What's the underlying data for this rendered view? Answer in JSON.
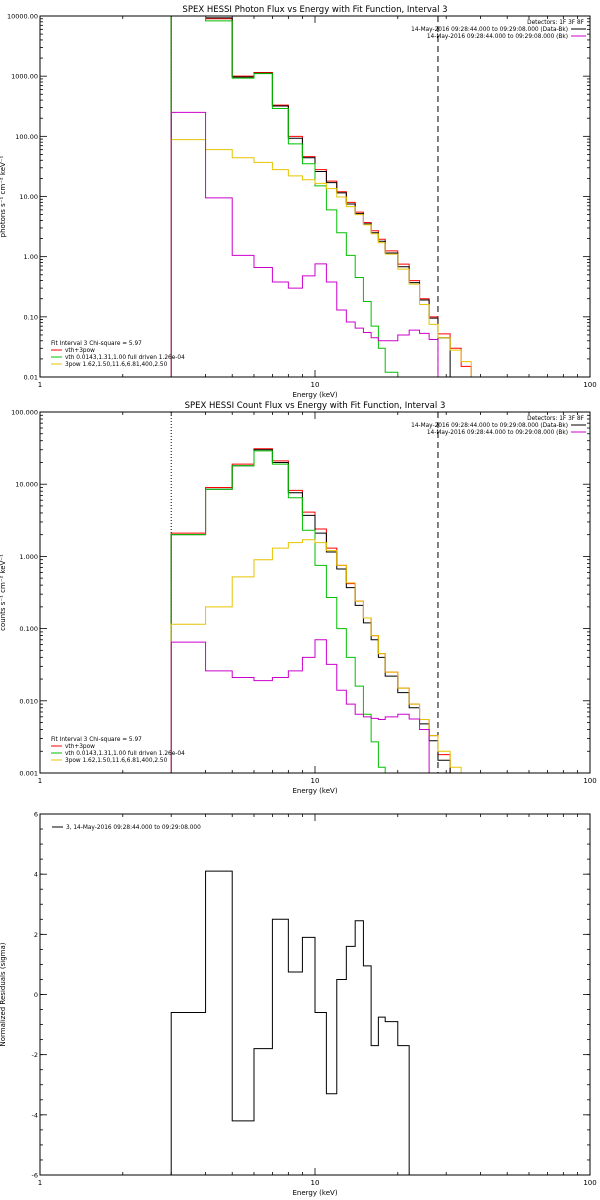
{
  "figure": {
    "background": "#ffffff",
    "axis_color": "#000000"
  },
  "chart_data": [
    {
      "type": "line",
      "step": true,
      "log_x": true,
      "log_y": true,
      "title": "SPEX HESSI Photon Flux vs Energy with Fit Function, Interval 3",
      "xlabel": "Energy (keV)",
      "ylabel": "photons s⁻¹ cm⁻² keV⁻¹",
      "xlim": [
        1,
        100
      ],
      "ylim": [
        0.01,
        10000
      ],
      "x_ticks": [
        1,
        10,
        100
      ],
      "x_tick_labels": [
        "1",
        "10",
        "100"
      ],
      "y_ticks": [
        0.01,
        0.1,
        1,
        10,
        100,
        1000,
        10000
      ],
      "y_tick_labels": [
        "0.01",
        "0.10",
        "1.00",
        "10.00",
        "100.00",
        "1000.00",
        "10000.00"
      ],
      "vlines": [
        {
          "x": 3,
          "style": "dotted"
        },
        {
          "x": 28,
          "style": "dashed"
        }
      ],
      "legend_tr": {
        "header": "Detectors: 1F 3F 8F",
        "lines": [
          {
            "text": "14-May-2016 09:28:44.000 to 09:29:08.000 (Data-Bk)",
            "color": "#000000"
          },
          {
            "text": "14-May-2016 09:28:44.000 to 09:29:08.000 (Bk)",
            "color": "#cc00cc"
          }
        ]
      },
      "legend_bl": {
        "header": "Fit Interval 3   Chi-square = 5.97",
        "lines": [
          {
            "text": "vth+3pow",
            "color": "#ff0000"
          },
          {
            "text": "vth 0.0143,1.31,1.00  full driven 1.26e-04",
            "color": "#00c000"
          },
          {
            "text": "3pow 1.62,1.50,11.6,6.81,400,2.50",
            "color": "#e6c400"
          }
        ]
      },
      "edges": [
        3,
        4,
        5,
        6,
        7,
        8,
        9,
        10,
        11,
        12,
        13,
        14,
        15,
        16,
        17,
        18,
        20,
        22,
        24,
        26,
        28,
        31,
        34,
        37
      ],
      "series": [
        {
          "color": "#ff0000",
          "values": [
            10000,
            9000,
            1000,
            1150,
            330,
            100,
            46,
            28,
            18,
            12,
            8,
            5.5,
            3.7,
            2.7,
            1.95,
            1.25,
            0.75,
            0.4,
            0.2,
            0.1,
            0.052,
            0.03,
            0.015
          ]
        },
        {
          "color": "#000000",
          "values": [
            10000,
            9300,
            970,
            1120,
            320,
            93,
            44,
            26,
            17,
            11.5,
            7.5,
            5.2,
            3.5,
            2.5,
            1.8,
            1.15,
            0.68,
            0.37,
            0.19,
            0.095,
            0.045
          ]
        },
        {
          "color": "#00c000",
          "values": [
            10000,
            8300,
            930,
            1100,
            290,
            75,
            35,
            15,
            6,
            2.5,
            1.05,
            0.45,
            0.18,
            0.07,
            0.03,
            0.012
          ]
        },
        {
          "color": "#e6c400",
          "values": [
            88,
            60,
            44,
            37,
            28,
            22,
            19,
            16.5,
            13.5,
            9.8,
            6.8,
            5.0,
            3.4,
            2.4,
            1.7,
            1.1,
            0.62,
            0.35,
            0.16,
            0.075,
            0.045,
            0.028,
            0.018
          ]
        },
        {
          "color": "#cc00cc",
          "values": [
            250,
            9.5,
            1.05,
            0.66,
            0.38,
            0.3,
            0.48,
            0.76,
            0.38,
            0.13,
            0.082,
            0.065,
            0.055,
            0.045,
            0.04,
            0.04,
            0.05,
            0.06,
            0.053,
            0.042
          ]
        }
      ]
    },
    {
      "type": "line",
      "step": true,
      "log_x": true,
      "log_y": true,
      "title": "SPEX HESSI Count Flux vs Energy with Fit Function, Interval 3",
      "xlabel": "Energy (keV)",
      "ylabel": "counts s⁻¹ cm⁻² keV⁻¹",
      "xlim": [
        1,
        100
      ],
      "ylim": [
        0.001,
        100
      ],
      "x_ticks": [
        1,
        10,
        100
      ],
      "x_tick_labels": [
        "1",
        "10",
        "100"
      ],
      "y_ticks": [
        0.001,
        0.01,
        0.1,
        1,
        10,
        100
      ],
      "y_tick_labels": [
        "0.001",
        "0.010",
        "0.100",
        "1.000",
        "10.000",
        "100.000"
      ],
      "vlines": [
        {
          "x": 3,
          "style": "dotted"
        },
        {
          "x": 28,
          "style": "dashed"
        }
      ],
      "legend_tr": {
        "header": "Detectors: 1F 3F 8F",
        "lines": [
          {
            "text": "14-May-2016 09:28:44.000 to 09:29:08.000 (Data-Bk)",
            "color": "#000000"
          },
          {
            "text": "14-May-2016 09:28:44.000 to 09:29:08.000 (Bk)",
            "color": "#cc00cc"
          }
        ]
      },
      "legend_bl": {
        "header": "Fit Interval 3   Chi-square = 5.97",
        "lines": [
          {
            "text": "vth+3pow",
            "color": "#ff0000"
          },
          {
            "text": "vth 0.0143,1.31,1.00  full driven 1.26e-04",
            "color": "#00c000"
          },
          {
            "text": "3pow 1.62,1.50,11.6,6.81,400,2.50",
            "color": "#e6c400"
          }
        ]
      },
      "edges": [
        3,
        4,
        5,
        6,
        7,
        8,
        9,
        10,
        11,
        12,
        13,
        14,
        15,
        16,
        17,
        18,
        20,
        22,
        24,
        26,
        28,
        31,
        34,
        37
      ],
      "series": [
        {
          "color": "#ff0000",
          "values": [
            2.1,
            9,
            19,
            31,
            21,
            8.2,
            4.1,
            2.4,
            1.3,
            0.75,
            0.42,
            0.24,
            0.14,
            0.08,
            0.045,
            0.025,
            0.015,
            0.009,
            0.0055,
            0.0033,
            0.0018
          ]
        },
        {
          "color": "#000000",
          "values": [
            2.0,
            8.5,
            18,
            30,
            20,
            7.6,
            3.7,
            2.1,
            1.15,
            0.67,
            0.37,
            0.21,
            0.12,
            0.07,
            0.04,
            0.022,
            0.013,
            0.008,
            0.0048,
            0.0028,
            0.0015
          ]
        },
        {
          "color": "#00c000",
          "values": [
            2.0,
            8.5,
            18,
            29,
            19,
            6.5,
            2.3,
            0.75,
            0.27,
            0.1,
            0.04,
            0.016,
            0.0065,
            0.0027,
            0.0012
          ]
        },
        {
          "color": "#e6c400",
          "values": [
            0.115,
            0.2,
            0.52,
            0.9,
            1.3,
            1.55,
            1.7,
            1.55,
            1.2,
            0.75,
            0.43,
            0.24,
            0.14,
            0.08,
            0.045,
            0.025,
            0.015,
            0.009,
            0.0055,
            0.0033,
            0.002,
            0.0012,
            0.001
          ]
        },
        {
          "color": "#cc00cc",
          "values": [
            0.065,
            0.026,
            0.021,
            0.019,
            0.021,
            0.026,
            0.04,
            0.07,
            0.032,
            0.014,
            0.009,
            0.0065,
            0.006,
            0.0057,
            0.0055,
            0.006,
            0.0065,
            0.0056,
            0.004
          ]
        }
      ]
    },
    {
      "type": "line",
      "step": true,
      "log_x": true,
      "log_y": false,
      "title": "",
      "xlabel": "Energy (keV)",
      "ylabel": "Normalized Residuals (sigma)",
      "xlim": [
        1,
        100
      ],
      "ylim": [
        -6,
        6
      ],
      "x_ticks": [
        1,
        10,
        100
      ],
      "x_tick_labels": [
        "1",
        "10",
        "100"
      ],
      "y_ticks": [
        -6,
        -4,
        -2,
        0,
        2,
        4,
        6
      ],
      "y_tick_labels": [
        "-6",
        "-4",
        "-2",
        "0",
        "2",
        "4",
        "6"
      ],
      "legend_tl": {
        "lines": [
          {
            "text": "3, 14-May-2016 09:28:44.000 to 09:29:08.000",
            "color": "#000000"
          }
        ]
      },
      "edges": [
        3,
        4,
        5,
        6,
        7,
        8,
        9,
        10,
        11,
        12,
        13,
        14,
        15,
        16,
        17,
        18,
        20,
        22,
        24,
        26,
        28
      ],
      "series": [
        {
          "color": "#000000",
          "values": [
            -0.6,
            4.1,
            -4.2,
            -1.8,
            2.5,
            0.75,
            1.9,
            -0.6,
            -3.3,
            0.5,
            1.6,
            2.45,
            0.95,
            -1.7,
            -0.75,
            -0.9,
            -1.7
          ],
          "baseline": -6
        }
      ]
    }
  ]
}
